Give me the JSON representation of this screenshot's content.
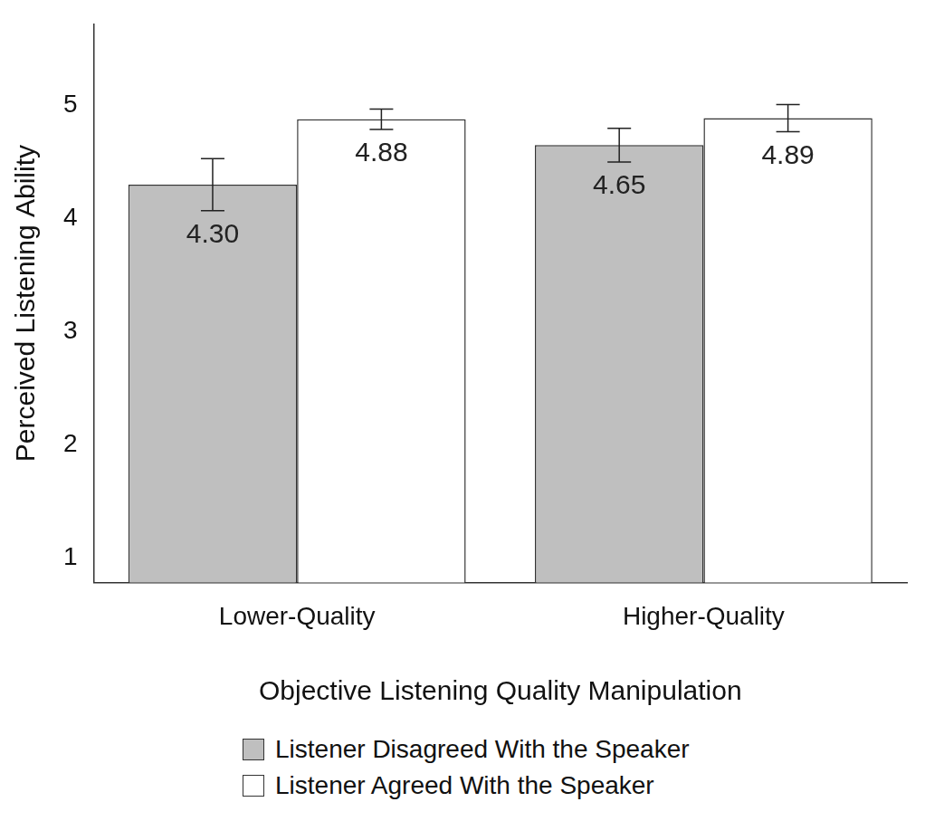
{
  "chart_data": {
    "type": "bar",
    "x_label": "Objective Listening Quality Manipulation",
    "y_label": "Perceived Listening Ability",
    "categories": [
      "Lower-Quality",
      "Higher-Quality"
    ],
    "series": [
      {
        "name": "Listener Disagreed With the Speaker",
        "color": "#bfbfbf",
        "values": [
          4.3,
          4.65
        ],
        "value_labels": [
          "4.30",
          "4.65"
        ],
        "errors": [
          0.23,
          0.15
        ]
      },
      {
        "name": "Listener Agreed With the Speaker",
        "color": "#ffffff",
        "values": [
          4.88,
          4.89
        ],
        "value_labels": [
          "4.88",
          "4.89"
        ],
        "errors": [
          0.09,
          0.12
        ]
      }
    ],
    "ylim": [
      0.78,
      5.72
    ],
    "yticks": [
      1,
      2,
      3,
      4,
      5
    ],
    "grid": false,
    "legend": "bottom",
    "data_labels": true
  }
}
